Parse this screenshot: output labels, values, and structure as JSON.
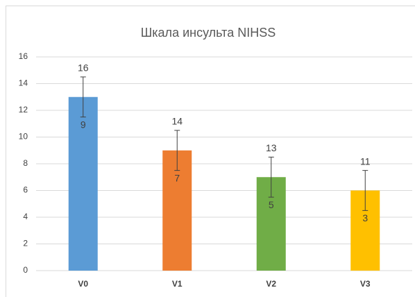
{
  "chart_data": {
    "type": "bar",
    "title": "Шкала инсульта NIHSS",
    "categories": [
      "V0",
      "V1",
      "V2",
      "V3"
    ],
    "values": [
      13,
      9,
      7,
      6
    ],
    "errors": [
      1.5,
      1.5,
      1.5,
      1.5
    ],
    "max_labels": [
      16,
      14,
      13,
      11
    ],
    "min_labels": [
      9,
      7,
      5,
      3
    ],
    "colors": [
      "#5b9bd5",
      "#ed7d31",
      "#70ad47",
      "#ffc000"
    ],
    "ylim": [
      0,
      16
    ],
    "yticks": [
      0,
      2,
      4,
      6,
      8,
      10,
      12,
      14,
      16
    ],
    "grid": true
  }
}
